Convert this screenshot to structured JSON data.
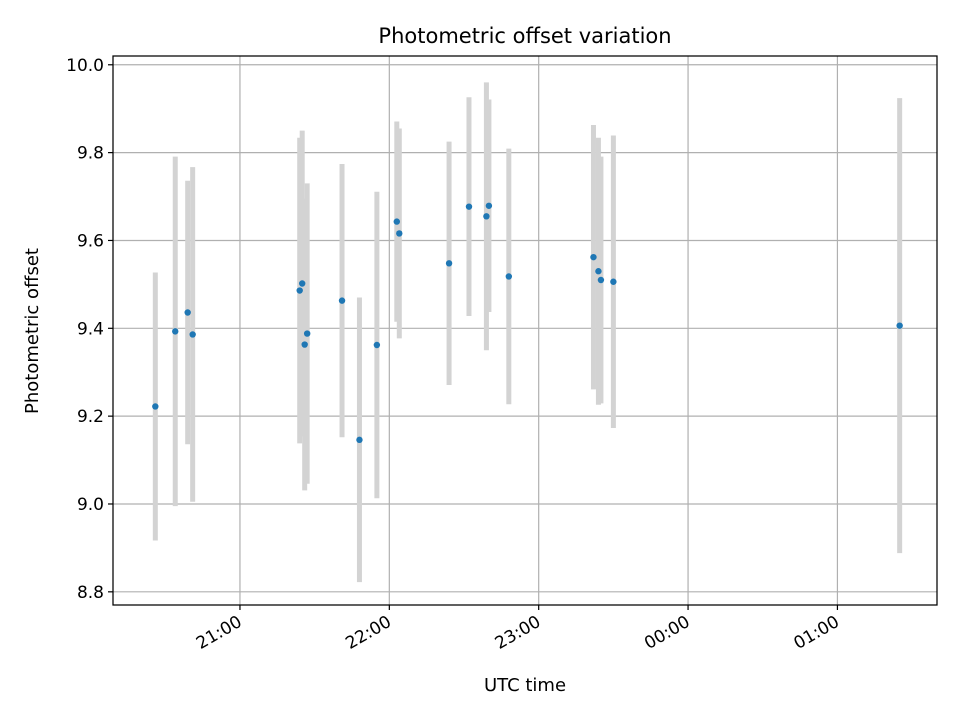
{
  "chart_data": {
    "type": "scatter",
    "title": "Photometric offset variation",
    "xlabel": "UTC time",
    "ylabel": "Photometric offset",
    "x_axis_kind": "time",
    "xlim": [
      "20:09",
      "25:40"
    ],
    "ylim": [
      8.77,
      10.02
    ],
    "xticks": [
      {
        "t": "21:00",
        "label": "21:00"
      },
      {
        "t": "22:00",
        "label": "22:00"
      },
      {
        "t": "23:00",
        "label": "23:00"
      },
      {
        "t": "24:00",
        "label": "00:00"
      },
      {
        "t": "25:00",
        "label": "01:00"
      }
    ],
    "yticks": [
      {
        "v": 8.8,
        "label": "8.8"
      },
      {
        "v": 9.0,
        "label": "9.0"
      },
      {
        "v": 9.2,
        "label": "9.2"
      },
      {
        "v": 9.4,
        "label": "9.4"
      },
      {
        "v": 9.6,
        "label": "9.6"
      },
      {
        "v": 9.8,
        "label": "9.8"
      },
      {
        "v": 10.0,
        "label": "10.0"
      }
    ],
    "grid": true,
    "colors": {
      "point": "#1f77b4",
      "errorbar": "#d3d3d3",
      "grid": "#b0b0b0"
    },
    "points": [
      {
        "t": "20:26",
        "y": 9.222,
        "lo": 8.917,
        "hi": 9.527
      },
      {
        "t": "20:34",
        "y": 9.393,
        "lo": 8.995,
        "hi": 9.791
      },
      {
        "t": "20:39",
        "y": 9.436,
        "lo": 9.136,
        "hi": 9.736
      },
      {
        "t": "20:41",
        "y": 9.386,
        "lo": 9.005,
        "hi": 9.767
      },
      {
        "t": "21:24",
        "y": 9.486,
        "lo": 9.138,
        "hi": 9.834
      },
      {
        "t": "21:25",
        "y": 9.502,
        "lo": 9.154,
        "hi": 9.85
      },
      {
        "t": "21:26",
        "y": 9.363,
        "lo": 9.031,
        "hi": 9.695
      },
      {
        "t": "21:27",
        "y": 9.388,
        "lo": 9.046,
        "hi": 9.73
      },
      {
        "t": "21:41",
        "y": 9.463,
        "lo": 9.152,
        "hi": 9.774
      },
      {
        "t": "21:48",
        "y": 9.146,
        "lo": 8.822,
        "hi": 9.47
      },
      {
        "t": "21:55",
        "y": 9.362,
        "lo": 9.013,
        "hi": 9.711
      },
      {
        "t": "22:03",
        "y": 9.643,
        "lo": 9.415,
        "hi": 9.871
      },
      {
        "t": "22:04",
        "y": 9.616,
        "lo": 9.377,
        "hi": 9.855
      },
      {
        "t": "22:24",
        "y": 9.548,
        "lo": 9.271,
        "hi": 9.825
      },
      {
        "t": "22:32",
        "y": 9.677,
        "lo": 9.428,
        "hi": 9.926
      },
      {
        "t": "22:39",
        "y": 9.655,
        "lo": 9.35,
        "hi": 9.96
      },
      {
        "t": "22:40",
        "y": 9.679,
        "lo": 9.437,
        "hi": 9.921
      },
      {
        "t": "22:48",
        "y": 9.518,
        "lo": 9.227,
        "hi": 9.809
      },
      {
        "t": "23:22",
        "y": 9.562,
        "lo": 9.261,
        "hi": 9.863
      },
      {
        "t": "23:24",
        "y": 9.53,
        "lo": 9.226,
        "hi": 9.834
      },
      {
        "t": "23:25",
        "y": 9.51,
        "lo": 9.229,
        "hi": 9.791
      },
      {
        "t": "23:30",
        "y": 9.506,
        "lo": 9.173,
        "hi": 9.839
      },
      {
        "t": "25:25",
        "y": 9.406,
        "lo": 8.888,
        "hi": 9.924
      }
    ]
  }
}
